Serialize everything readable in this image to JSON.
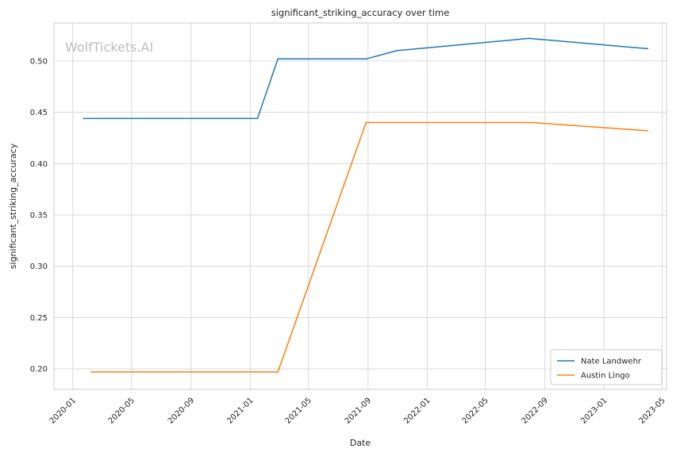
{
  "chart_data": {
    "type": "line",
    "title": "significant_striking_accuracy over time",
    "xlabel": "Date",
    "ylabel": "significant_striking_accuracy",
    "watermark": "WolfTickets.AI",
    "xlim": [
      "2019-11-23",
      "2023-05-10"
    ],
    "ylim": [
      0.18,
      0.537
    ],
    "x_ticks": [
      {
        "date": "2020-01-01",
        "label": "2020-01"
      },
      {
        "date": "2020-05-01",
        "label": "2020-05"
      },
      {
        "date": "2020-09-01",
        "label": "2020-09"
      },
      {
        "date": "2021-01-01",
        "label": "2021-01"
      },
      {
        "date": "2021-05-01",
        "label": "2021-05"
      },
      {
        "date": "2021-09-01",
        "label": "2021-09"
      },
      {
        "date": "2022-01-01",
        "label": "2022-01"
      },
      {
        "date": "2022-05-01",
        "label": "2022-05"
      },
      {
        "date": "2022-09-01",
        "label": "2022-09"
      },
      {
        "date": "2023-01-01",
        "label": "2023-01"
      },
      {
        "date": "2023-05-01",
        "label": "2023-05"
      }
    ],
    "y_ticks": [
      {
        "value": 0.2,
        "label": "0.20"
      },
      {
        "value": 0.25,
        "label": "0.25"
      },
      {
        "value": 0.3,
        "label": "0.30"
      },
      {
        "value": 0.35,
        "label": "0.35"
      },
      {
        "value": 0.4,
        "label": "0.40"
      },
      {
        "value": 0.45,
        "label": "0.45"
      },
      {
        "value": 0.5,
        "label": "0.50"
      }
    ],
    "grid": true,
    "legend_position": "bottom-right",
    "series": [
      {
        "name": "Nate Landwehr",
        "color": "#1f77b4",
        "points": [
          {
            "x": "2020-01-23",
            "y": 0.444
          },
          {
            "x": "2021-01-16",
            "y": 0.444
          },
          {
            "x": "2021-02-27",
            "y": 0.502
          },
          {
            "x": "2021-08-28",
            "y": 0.502
          },
          {
            "x": "2021-10-30",
            "y": 0.51
          },
          {
            "x": "2022-07-30",
            "y": 0.522
          },
          {
            "x": "2023-04-01",
            "y": 0.512
          }
        ]
      },
      {
        "name": "Austin Lingo",
        "color": "#ff7f0e",
        "points": [
          {
            "x": "2020-02-08",
            "y": 0.197
          },
          {
            "x": "2021-02-27",
            "y": 0.197
          },
          {
            "x": "2021-08-28",
            "y": 0.44
          },
          {
            "x": "2022-08-06",
            "y": 0.44
          },
          {
            "x": "2023-04-01",
            "y": 0.432
          }
        ]
      }
    ]
  }
}
